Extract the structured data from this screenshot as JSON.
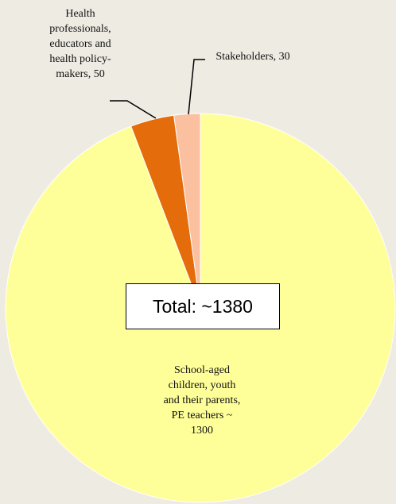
{
  "chart_data": {
    "type": "pie",
    "values": [
      1300,
      50,
      30
    ],
    "value_labels": [
      "School-aged children, youth and their parents, PE teachers ~ 1300",
      "Health professionals, educators and health policy-makers, 50",
      "Stakeholders, 30"
    ],
    "colors": [
      "#ffff99",
      "#e46c0a",
      "#fac0a0"
    ],
    "annotation": "Total: ~1380"
  }
}
